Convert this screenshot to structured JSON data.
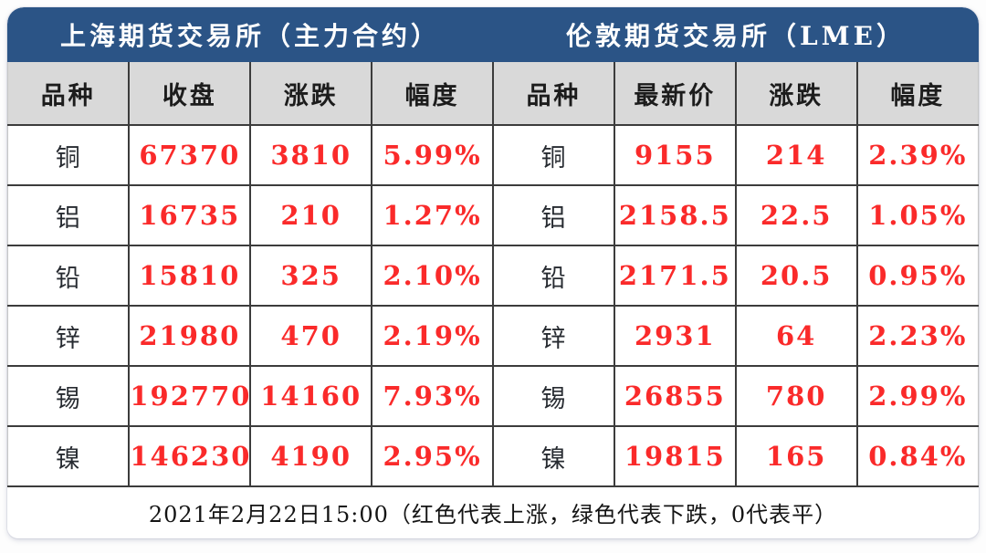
{
  "exchanges": {
    "left_title": "上海期货交易所（主力合约）",
    "right_title": "伦敦期货交易所（LME）"
  },
  "columns": [
    "品种",
    "收盘",
    "涨跌",
    "幅度",
    "品种",
    "最新价",
    "涨跌",
    "幅度"
  ],
  "rows": [
    [
      "铜",
      "67370",
      "3810",
      "5.99%",
      "铜",
      "9155",
      "214",
      "2.39%"
    ],
    [
      "铝",
      "16735",
      "210",
      "1.27%",
      "铝",
      "2158.5",
      "22.5",
      "1.05%"
    ],
    [
      "铅",
      "15810",
      "325",
      "2.10%",
      "铅",
      "2171.5",
      "20.5",
      "0.95%"
    ],
    [
      "锌",
      "21980",
      "470",
      "2.19%",
      "锌",
      "2931",
      "64",
      "2.23%"
    ],
    [
      "锡",
      "192770",
      "14160",
      "7.93%",
      "锡",
      "26855",
      "780",
      "2.99%"
    ],
    [
      "镍",
      "146230",
      "4190",
      "2.95%",
      "镍",
      "19815",
      "165",
      "0.84%"
    ]
  ],
  "footer_note": "2021年2月22日15:00（红色代表上涨，绿色代表下跌，0代表平）",
  "colors": {
    "header_blue": "#2b5486",
    "column_header_gray": "#d9d9d9",
    "up_red": "#fa2a2a",
    "grid_line": "#3c3c3c"
  },
  "chart_data": [
    {
      "type": "table",
      "title": "上海期货交易所（主力合约）",
      "columns": [
        "品种",
        "收盘",
        "涨跌",
        "幅度"
      ],
      "rows": [
        [
          "铜",
          67370,
          3810,
          "5.99%"
        ],
        [
          "铝",
          16735,
          210,
          "1.27%"
        ],
        [
          "铅",
          15810,
          325,
          "2.10%"
        ],
        [
          "锌",
          21980,
          470,
          "2.19%"
        ],
        [
          "锡",
          192770,
          14160,
          "7.93%"
        ],
        [
          "镍",
          146230,
          4190,
          "2.95%"
        ]
      ],
      "note": "红色代表上涨，绿色代表下跌，0代表平",
      "timestamp": "2021年2月22日15:00"
    },
    {
      "type": "table",
      "title": "伦敦期货交易所（LME）",
      "columns": [
        "品种",
        "最新价",
        "涨跌",
        "幅度"
      ],
      "rows": [
        [
          "铜",
          9155,
          214,
          "2.39%"
        ],
        [
          "铝",
          2158.5,
          22.5,
          "1.05%"
        ],
        [
          "铅",
          2171.5,
          20.5,
          "0.95%"
        ],
        [
          "锌",
          2931,
          64,
          "2.23%"
        ],
        [
          "锡",
          26855,
          780,
          "2.99%"
        ],
        [
          "镍",
          19815,
          165,
          "0.84%"
        ]
      ],
      "note": "红色代表上涨，绿色代表下跌，0代表平",
      "timestamp": "2021年2月22日15:00"
    }
  ]
}
